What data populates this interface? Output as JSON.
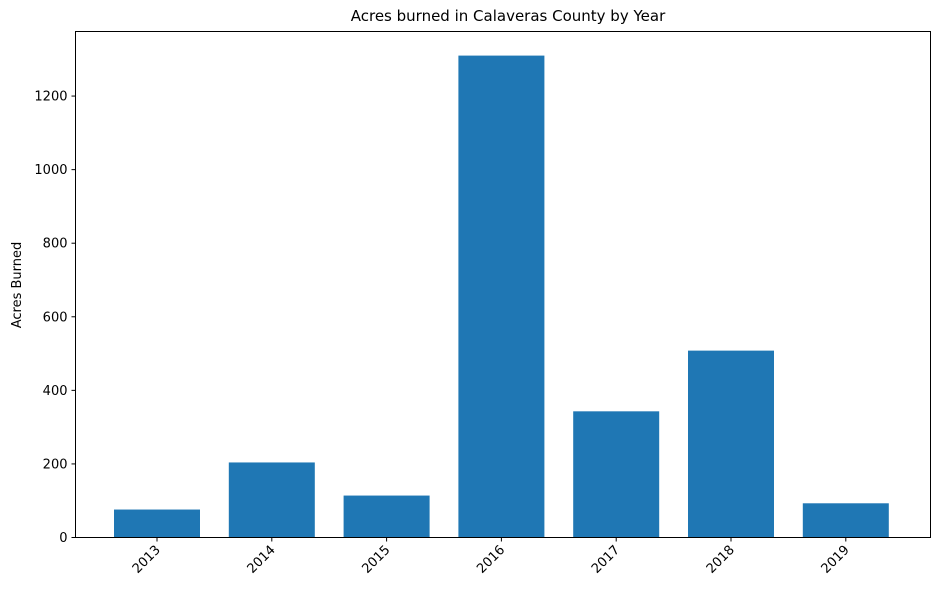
{
  "chart_data": {
    "type": "bar",
    "title": "Acres burned in Calaveras County by Year",
    "xlabel": "",
    "ylabel": "Acres Burned",
    "categories": [
      "2013",
      "2014",
      "2015",
      "2016",
      "2017",
      "2018",
      "2019"
    ],
    "values": [
      76,
      204,
      114,
      1310,
      343,
      508,
      93
    ],
    "ylim": [
      0,
      1375.5
    ],
    "yticks": [
      0,
      200,
      400,
      600,
      800,
      1000,
      1200
    ],
    "grid": false,
    "bar_color": "#1f77b4"
  }
}
